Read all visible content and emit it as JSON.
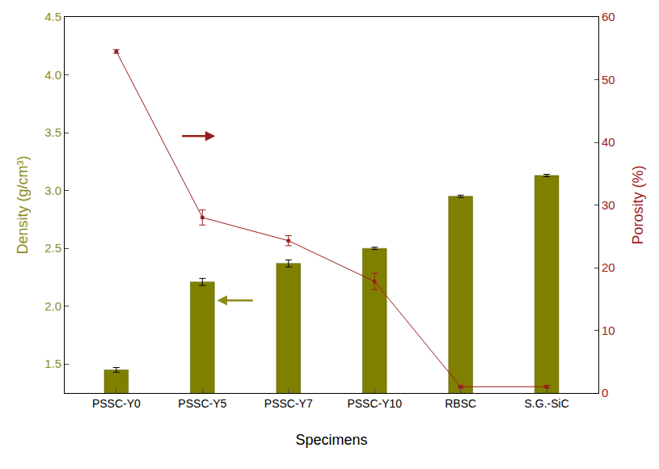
{
  "chart_data": {
    "type": "bar",
    "x_label": "Specimens",
    "y_label": "Density (g/cm³)",
    "y2_label": "Porosity (%)",
    "categories": [
      "PSSC-Y0",
      "PSSC-Y5",
      "PSSC-Y7",
      "PSSC-Y10",
      "RBSC",
      "S.G.-SiC"
    ],
    "series": [
      {
        "name": "Density",
        "type": "bar",
        "color": "#808000",
        "axis": "y",
        "values": [
          1.45,
          2.21,
          2.37,
          2.5,
          2.95,
          3.13
        ],
        "errors": [
          0.02,
          0.03,
          0.03,
          0.01,
          0.01,
          0.01
        ]
      },
      {
        "name": "Porosity",
        "type": "line",
        "color": "#9b1c1c",
        "marker": "circle",
        "axis": "y2",
        "values": [
          54.5,
          28.0,
          24.3,
          17.8,
          1.0,
          1.0
        ],
        "errors": [
          0.3,
          1.2,
          0.8,
          1.3,
          0.2,
          0.2
        ]
      }
    ],
    "ylim": [
      1.25,
      4.5
    ],
    "yticks": [
      {
        "value": 1.5,
        "label": "1.5"
      },
      {
        "value": 2,
        "label": "2.0"
      },
      {
        "value": 2.5,
        "label": "2.5"
      },
      {
        "value": 3,
        "label": "3.0"
      },
      {
        "value": 3.5,
        "label": "3.5"
      },
      {
        "value": 4,
        "label": "4.0"
      },
      {
        "value": 4.5,
        "label": "4.5"
      }
    ],
    "y2lim": [
      0,
      60
    ],
    "y2ticks": [
      0,
      10,
      20,
      30,
      40,
      50,
      60
    ],
    "grid": false
  }
}
